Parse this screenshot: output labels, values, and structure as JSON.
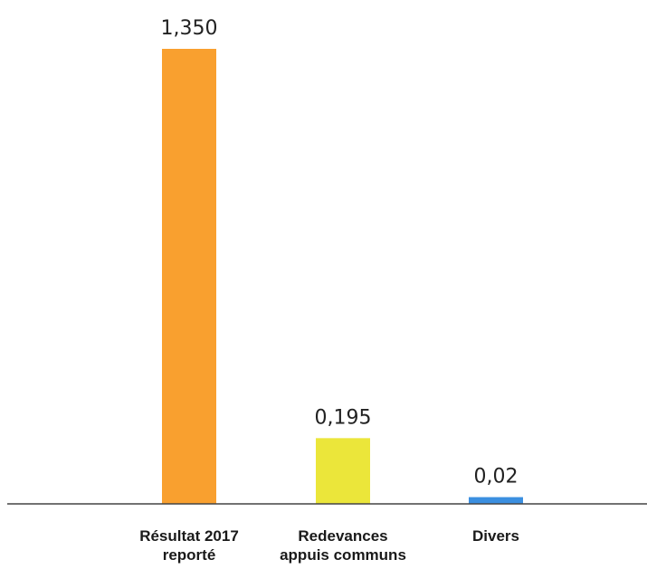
{
  "chart_data": {
    "type": "bar",
    "categories": [
      [
        "Résultat 2017",
        "reporté"
      ],
      [
        "Redevances",
        "appuis communs"
      ],
      [
        "Divers"
      ]
    ],
    "values": [
      1.35,
      0.195,
      0.02
    ],
    "value_labels": [
      "1,350",
      "0,195",
      "0,02"
    ],
    "colors": [
      "#f9a02f",
      "#ebe63a",
      "#3b8fe0"
    ],
    "title": "",
    "xlabel": "",
    "ylabel": "",
    "ylim": [
      0,
      1.35
    ],
    "grid": false,
    "legend": "none"
  }
}
